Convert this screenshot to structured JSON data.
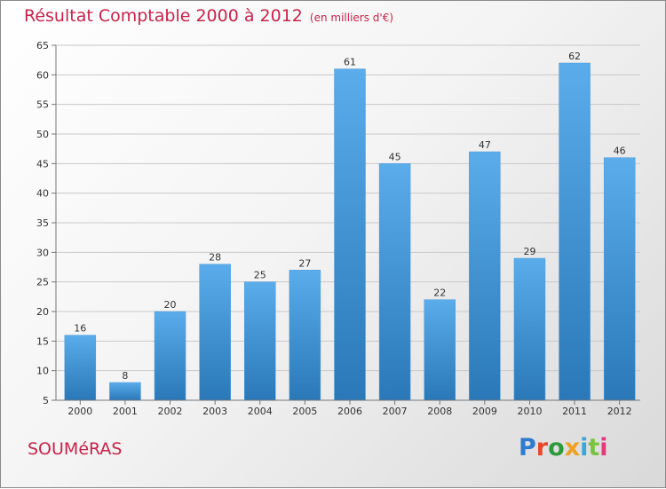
{
  "chart_data": {
    "type": "bar",
    "title": "Résultat Comptable 2000 à 2012",
    "subtitle": "(en milliers d'€)",
    "categories": [
      "2000",
      "2001",
      "2002",
      "2003",
      "2004",
      "2005",
      "2006",
      "2007",
      "2008",
      "2009",
      "2010",
      "2011",
      "2012"
    ],
    "values": [
      16,
      8,
      20,
      28,
      25,
      27,
      61,
      45,
      22,
      47,
      29,
      62,
      46
    ],
    "yticks": [
      5,
      10,
      15,
      20,
      25,
      30,
      35,
      40,
      45,
      50,
      55,
      60,
      65
    ],
    "ylim": [
      5,
      65
    ],
    "xlabel": "",
    "ylabel": "",
    "grid": true,
    "colors": {
      "bar_top": "#5aaceb",
      "bar_bottom": "#2a78b8",
      "title": "#c8234a"
    }
  },
  "footer": {
    "commune": "SOUMéRAS",
    "brand": "Proxiti"
  }
}
